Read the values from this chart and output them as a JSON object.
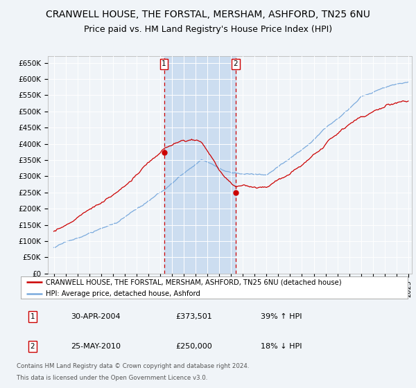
{
  "title": "CRANWELL HOUSE, THE FORSTAL, MERSHAM, ASHFORD, TN25 6NU",
  "subtitle": "Price paid vs. HM Land Registry's House Price Index (HPI)",
  "title_fontsize": 10,
  "subtitle_fontsize": 9,
  "background_color": "#f0f4f8",
  "plot_bg_color": "#f0f4f8",
  "red_line_color": "#cc0000",
  "blue_line_color": "#7aaadd",
  "shade_color": "#ccddf0",
  "ylim": [
    0,
    670000
  ],
  "yticks": [
    0,
    50000,
    100000,
    150000,
    200000,
    250000,
    300000,
    350000,
    400000,
    450000,
    500000,
    550000,
    600000,
    650000
  ],
  "ytick_labels": [
    "£0",
    "£50K",
    "£100K",
    "£150K",
    "£200K",
    "£250K",
    "£300K",
    "£350K",
    "£400K",
    "£450K",
    "£500K",
    "£550K",
    "£600K",
    "£650K"
  ],
  "sale1_year": 2004.33,
  "sale1_price": 373501,
  "sale1_label": "1",
  "sale1_hpi_pct": "39% ↑ HPI",
  "sale1_date": "30-APR-2004",
  "sale2_year": 2010.38,
  "sale2_price": 250000,
  "sale2_label": "2",
  "sale2_hpi_pct": "18% ↓ HPI",
  "sale2_date": "25-MAY-2010",
  "legend_label1": "CRANWELL HOUSE, THE FORSTAL, MERSHAM, ASHFORD, TN25 6NU (detached house)",
  "legend_label2": "HPI: Average price, detached house, Ashford",
  "footer1": "Contains HM Land Registry data © Crown copyright and database right 2024.",
  "footer2": "This data is licensed under the Open Government Licence v3.0.",
  "xstart": 1995,
  "xend": 2025
}
